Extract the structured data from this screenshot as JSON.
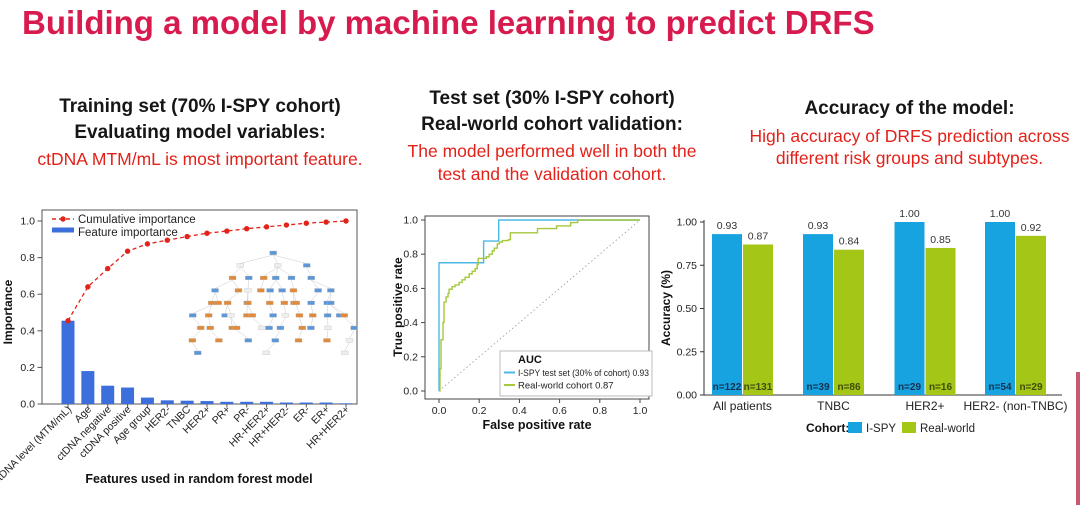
{
  "title": "Building a model by machine learning to predict DRFS",
  "colors": {
    "title_accent": "#D81B4E",
    "heading_text": "#161616",
    "note_red": "#E32119",
    "axis_dark": "#444444",
    "stripe_pink": "#C75A72"
  },
  "panels": {
    "training": {
      "heading_line1": "Training set (70% I-SPY cohort)",
      "heading_line2": "Evaluating model variables:",
      "note": "ctDNA MTM/mL is most important feature."
    },
    "test": {
      "heading_line1": "Test set (30% I-SPY cohort)",
      "heading_line2": "Real-world cohort validation:",
      "note_line1": "The model performed well in both the",
      "note_line2": "test and the validation cohort."
    },
    "accuracy": {
      "heading_line1": "Accuracy of the model:",
      "note_line1": "High accuracy of DRFS prediction across",
      "note_line2": "different risk groups and subtypes."
    }
  },
  "chart_data": [
    {
      "type": "bar",
      "title": "",
      "xlabel": "Features used in random forest model",
      "ylabel": "Importance",
      "ylim": [
        0.0,
        1.0
      ],
      "yticks": [
        0.0,
        0.2,
        0.4,
        0.6,
        0.8,
        1.0
      ],
      "grid": false,
      "legend_position": "top-left-inside",
      "categories": [
        "ctDNA level (MTM/mL)",
        "Age",
        "ctDNA negative",
        "ctDNA positive",
        "Age group",
        "HER2-",
        "TNBC",
        "HER2+",
        "PR+",
        "PR-",
        "HR-HER2+",
        "HR+HER2-",
        "ER-",
        "ER+",
        "HR+HER2+"
      ],
      "series": [
        {
          "name": "Feature importance",
          "kind": "bar",
          "color": "#3C6FDC",
          "values": [
            0.455,
            0.18,
            0.1,
            0.09,
            0.035,
            0.02,
            0.018,
            0.016,
            0.012,
            0.012,
            0.012,
            0.008,
            0.008,
            0.008,
            0.004
          ]
        },
        {
          "name": "Cumulative importance",
          "kind": "line-dashed-dots",
          "color": "#E3231A",
          "values": [
            0.455,
            0.64,
            0.74,
            0.835,
            0.875,
            0.895,
            0.915,
            0.933,
            0.945,
            0.958,
            0.968,
            0.978,
            0.988,
            0.994,
            1.0
          ]
        }
      ],
      "inset": "random-forest-tree-diagram"
    },
    {
      "type": "line",
      "title": "",
      "xlabel": "False positive rate",
      "ylabel": "True positive rate",
      "xlim": [
        0.0,
        1.0
      ],
      "ylim": [
        0.0,
        1.0
      ],
      "xticks": [
        0.0,
        0.2,
        0.4,
        0.6,
        0.8,
        1.0
      ],
      "yticks": [
        0.0,
        0.2,
        0.4,
        0.6,
        0.8,
        1.0
      ],
      "grid": false,
      "diagonal_reference": true,
      "legend_title": "AUC",
      "legend_position": "bottom-right-inside",
      "series": [
        {
          "name": "I-SPY test set (30% of cohort) 0.93",
          "color": "#4CB8E6",
          "auc": 0.93,
          "points": [
            [
              0,
              0
            ],
            [
              0,
              0.75
            ],
            [
              0.222,
              0.75
            ],
            [
              0.222,
              0.877
            ],
            [
              0.297,
              0.877
            ],
            [
              0.297,
              1.0
            ],
            [
              1.0,
              1.0
            ]
          ]
        },
        {
          "name": "Real-world cohort 0.87",
          "color": "#A5C83C",
          "auc": 0.87,
          "points": [
            [
              0,
              0
            ],
            [
              0.005,
              0.13
            ],
            [
              0.01,
              0.3
            ],
            [
              0.02,
              0.4
            ],
            [
              0.025,
              0.52
            ],
            [
              0.035,
              0.55
            ],
            [
              0.045,
              0.57
            ],
            [
              0.05,
              0.595
            ],
            [
              0.065,
              0.61
            ],
            [
              0.08,
              0.62
            ],
            [
              0.1,
              0.635
            ],
            [
              0.115,
              0.65
            ],
            [
              0.13,
              0.665
            ],
            [
              0.15,
              0.685
            ],
            [
              0.165,
              0.7
            ],
            [
              0.18,
              0.715
            ],
            [
              0.19,
              0.74
            ],
            [
              0.195,
              0.775
            ],
            [
              0.235,
              0.785
            ],
            [
              0.25,
              0.8
            ],
            [
              0.265,
              0.82
            ],
            [
              0.275,
              0.835
            ],
            [
              0.29,
              0.86
            ],
            [
              0.3,
              0.87
            ],
            [
              0.315,
              0.88
            ],
            [
              0.345,
              0.885
            ],
            [
              0.355,
              0.925
            ],
            [
              0.47,
              0.925
            ],
            [
              0.49,
              0.95
            ],
            [
              0.565,
              0.95
            ],
            [
              0.585,
              0.965
            ],
            [
              0.64,
              0.965
            ],
            [
              0.655,
              0.985
            ],
            [
              0.685,
              0.985
            ],
            [
              0.69,
              1.0
            ],
            [
              1.0,
              1.0
            ]
          ]
        }
      ]
    },
    {
      "type": "bar",
      "title": "",
      "xlabel": "",
      "ylabel": "Accuracy (%)",
      "ylim": [
        0.0,
        1.0
      ],
      "yticks": [
        0.0,
        0.25,
        0.5,
        0.75,
        1.0
      ],
      "grid": false,
      "legend_label": "Cohort:",
      "legend_position": "bottom-outside",
      "categories": [
        "All patients",
        "TNBC",
        "HER2+",
        "HER2- (non-TNBC)"
      ],
      "series": [
        {
          "name": "I-SPY",
          "color": "#17A2E0",
          "values": [
            0.93,
            0.93,
            1.0,
            1.0
          ],
          "n_labels": [
            "n=122",
            "n=39",
            "n=29",
            "n=54"
          ],
          "n_label_color": "#16324f"
        },
        {
          "name": "Real-world",
          "color": "#A3C617",
          "values": [
            0.87,
            0.84,
            0.85,
            0.92
          ],
          "n_labels": [
            "n=131",
            "n=86",
            "n=16",
            "n=29"
          ],
          "n_label_color": "#3f4d08"
        }
      ],
      "value_label_color": "#333333"
    }
  ]
}
